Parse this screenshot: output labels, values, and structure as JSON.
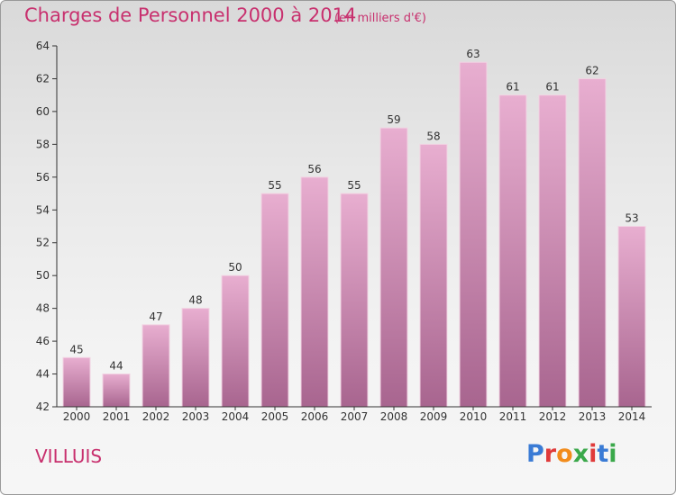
{
  "header": {
    "title": "Charges de Personnel 2000 à 2014",
    "unit": "(en milliers d'€)"
  },
  "footer": {
    "city": "VILLUIS",
    "logo": "Proxiti"
  },
  "colors": {
    "title": "#c8306e",
    "bar_top": "#e7aacb",
    "bar_bottom": "#a9668f",
    "logo": [
      "#3a7bd5",
      "#e03a3a",
      "#f28c1c",
      "#3aa84a",
      "#e03a3a",
      "#3a7bd5",
      "#3aa84a"
    ]
  },
  "chart_data": {
    "type": "bar",
    "title": "Charges de Personnel 2000 à 2014",
    "subtitle": "(en milliers d'€)",
    "categories": [
      "2000",
      "2001",
      "2002",
      "2003",
      "2004",
      "2005",
      "2006",
      "2007",
      "2008",
      "2009",
      "2010",
      "2011",
      "2012",
      "2013",
      "2014"
    ],
    "values": [
      45,
      44,
      47,
      48,
      50,
      55,
      56,
      55,
      59,
      58,
      63,
      61,
      61,
      62,
      53
    ],
    "ylim": [
      42,
      64
    ],
    "yticks": [
      42,
      44,
      46,
      48,
      50,
      52,
      54,
      56,
      58,
      60,
      62,
      64
    ],
    "xlabel": "",
    "ylabel": "",
    "grid": false,
    "legend": "none"
  }
}
